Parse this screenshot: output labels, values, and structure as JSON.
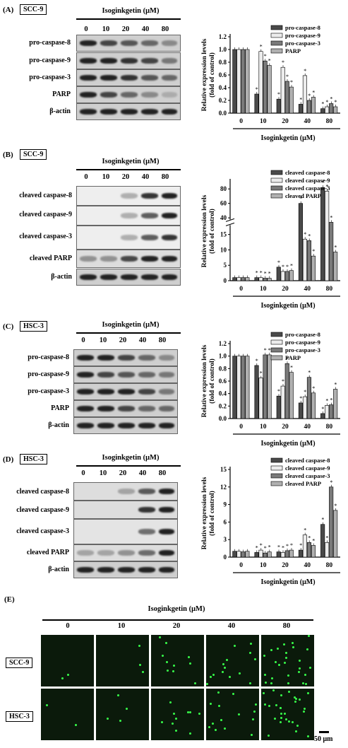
{
  "panelA": {
    "label": "(A)",
    "cell": "SCC-9",
    "title": "Isoginkgetin (μM)",
    "conc": [
      "0",
      "10",
      "20",
      "40",
      "80"
    ],
    "rows": [
      "pro-caspase-8",
      "pro-caspase-9",
      "pro-caspase-3",
      "PARP",
      "β-actin"
    ]
  },
  "panelB": {
    "label": "(B)",
    "cell": "SCC-9",
    "title": "Isoginkgetin (μM)",
    "conc": [
      "0",
      "10",
      "20",
      "40",
      "80"
    ],
    "rows": [
      "cleaved caspase-8",
      "cleaved caspase-9",
      "cleaved caspase-3",
      "cleaved PARP",
      "β-actin"
    ]
  },
  "panelC": {
    "label": "(C)",
    "cell": "HSC-3",
    "title": "Isoginkgetin (μM)",
    "conc": [
      "0",
      "10",
      "20",
      "40",
      "80"
    ],
    "rows": [
      "pro-caspase-8",
      "pro-caspase-9",
      "pro-caspase-3",
      "PARP",
      "β-actin"
    ]
  },
  "panelD": {
    "label": "(D)",
    "cell": "HSC-3",
    "title": "Isoginkgetin (μM)",
    "conc": [
      "0",
      "10",
      "20",
      "40",
      "80"
    ],
    "rows": [
      "cleaved caspase-8",
      "cleaved caspase-9",
      "cleaved caspase-3",
      "cleaved PARP",
      "β-actin"
    ]
  },
  "panelE": {
    "label": "(E)",
    "title": "Isoginkgetin (μM)",
    "conc": [
      "0",
      "10",
      "20",
      "40",
      "80"
    ],
    "rows": [
      "SCC-9",
      "HSC-3"
    ],
    "scale": "50 μm"
  },
  "colors": {
    "series": [
      "#4a4a4a",
      "#ececec",
      "#7a7a7a",
      "#b0b0b0"
    ],
    "fluor": "#37ff4a"
  },
  "chart_data": [
    {
      "type": "bar",
      "panel": "A",
      "categories": [
        "0",
        "10",
        "20",
        "40",
        "80"
      ],
      "xlabel": "Isoginkgetin (μM)",
      "ylabel": "Relative expression levels (fold of control)",
      "ylim": [
        0,
        1.2
      ],
      "ticks": [
        "0.0",
        "0.2",
        "0.4",
        "0.6",
        "0.8",
        "1.0",
        "1.2"
      ],
      "series": [
        {
          "name": "pro-caspase-8",
          "values": [
            1.0,
            0.3,
            0.22,
            0.14,
            0.07
          ]
        },
        {
          "name": "pro-caspase-9",
          "values": [
            1.0,
            0.97,
            0.72,
            0.59,
            0.1
          ]
        },
        {
          "name": "pro-caspase-3",
          "values": [
            1.0,
            0.82,
            0.5,
            0.2,
            0.15
          ]
        },
        {
          "name": "PARP",
          "values": [
            1.0,
            0.75,
            0.41,
            0.25,
            0.1
          ]
        }
      ]
    },
    {
      "type": "bar",
      "panel": "B",
      "categories": [
        "0",
        "10",
        "20",
        "40",
        "80"
      ],
      "xlabel": "Isoginkgetin (μM)",
      "ylabel": "Relative expression levels (fold of control)",
      "ylim": [
        0,
        90
      ],
      "axis_break": [
        18,
        38
      ],
      "ticks": [
        "0",
        "5",
        "10",
        "15",
        "40",
        "60",
        "80"
      ],
      "series": [
        {
          "name": "cleaved caspase-8",
          "values": [
            1.0,
            1.0,
            4.4,
            60,
            82
          ]
        },
        {
          "name": "cleaved caspase-9",
          "values": [
            1.0,
            1.0,
            3.0,
            13.5,
            77
          ]
        },
        {
          "name": "cleaved caspase-3",
          "values": [
            1.0,
            0.8,
            3.0,
            13.0,
            20
          ]
        },
        {
          "name": "cleaved PARP",
          "values": [
            1.0,
            0.8,
            3.3,
            8.0,
            9.3
          ]
        }
      ]
    },
    {
      "type": "bar",
      "panel": "C",
      "categories": [
        "0",
        "10",
        "20",
        "40",
        "80"
      ],
      "xlabel": "Isoginkgetin (μM)",
      "ylabel": "Relative expression levels (fold of control)",
      "ylim": [
        0,
        1.2
      ],
      "ticks": [
        "0.0",
        "0.2",
        "0.4",
        "0.6",
        "0.8",
        "1.0",
        "1.2"
      ],
      "series": [
        {
          "name": "pro-caspase-8",
          "values": [
            1.0,
            0.85,
            0.36,
            0.25,
            0.08
          ]
        },
        {
          "name": "pro-caspase-9",
          "values": [
            1.0,
            0.65,
            0.52,
            0.35,
            0.21
          ]
        },
        {
          "name": "pro-caspase-3",
          "values": [
            1.0,
            1.02,
            0.88,
            0.66,
            0.22
          ]
        },
        {
          "name": "PARP",
          "values": [
            1.0,
            1.02,
            0.74,
            0.41,
            0.47
          ]
        }
      ]
    },
    {
      "type": "bar",
      "panel": "D",
      "categories": [
        "0",
        "10",
        "20",
        "40",
        "80"
      ],
      "xlabel": "Isoginkgetin (μM)",
      "ylabel": "Relative expression levels (fold of control)",
      "ylim": [
        0,
        15
      ],
      "ticks": [
        "0",
        "3",
        "6",
        "9",
        "12",
        "15"
      ],
      "series": [
        {
          "name": "cleaved caspase-8",
          "values": [
            1.0,
            0.8,
            0.9,
            1.2,
            5.6
          ]
        },
        {
          "name": "cleaved caspase-9",
          "values": [
            1.0,
            1.2,
            0.8,
            3.8,
            2.5
          ]
        },
        {
          "name": "cleaved caspase-3",
          "values": [
            0.9,
            0.7,
            1.1,
            2.5,
            12.0
          ]
        },
        {
          "name": "cleaved PARP",
          "values": [
            1.0,
            0.9,
            1.2,
            2.0,
            8.0
          ]
        }
      ]
    }
  ]
}
